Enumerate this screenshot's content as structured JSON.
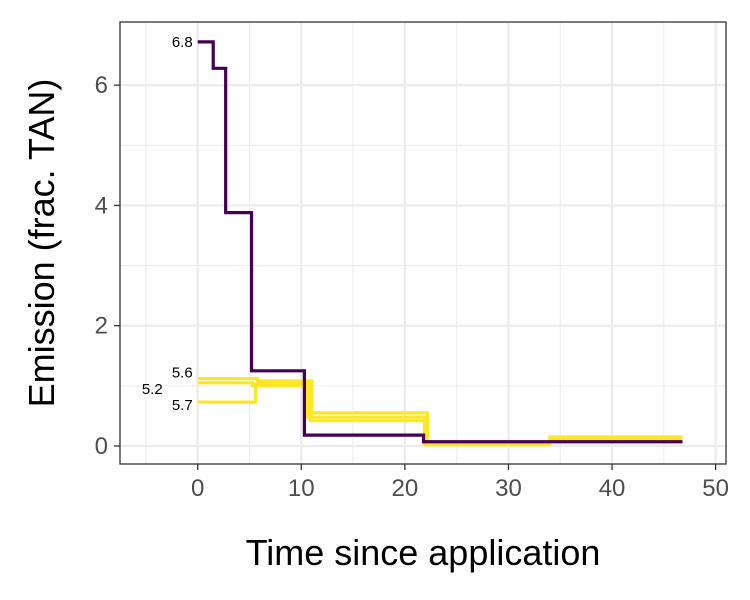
{
  "chart_data": {
    "type": "line",
    "title": "",
    "xlabel": "Time since application",
    "ylabel": "Emission (frac. TAN)",
    "xlim": [
      -7.5,
      51
    ],
    "ylim": [
      -0.3,
      7.05
    ],
    "x_ticks": [
      0,
      10,
      20,
      30,
      40,
      50
    ],
    "y_ticks": [
      0,
      2,
      4,
      6
    ],
    "x_minor_ticks": [
      -5,
      5,
      15,
      25,
      35,
      45
    ],
    "y_minor_ticks": [
      1,
      3,
      5
    ],
    "grid": true,
    "legend": "none",
    "step": "pre",
    "series": [
      {
        "label": "6.8",
        "color": "#440154",
        "x": [
          0,
          1.5,
          2.7,
          5.2,
          10.3,
          21.8,
          46.8
        ],
        "y": [
          6.72,
          6.28,
          3.88,
          1.25,
          0.18,
          0.07,
          0.07
        ]
      },
      {
        "label": "5.6",
        "color": "#FDE725",
        "x": [
          0,
          5.8,
          11.0,
          22.2,
          34.0,
          46.8
        ],
        "y": [
          1.12,
          1.08,
          0.55,
          0.05,
          0.15,
          0.15
        ]
      },
      {
        "label": "5.2",
        "color": "#FDE725",
        "x": [
          0,
          5.3,
          10.6,
          21.9,
          34.0,
          46.8
        ],
        "y": [
          1.05,
          1.0,
          0.48,
          0.03,
          0.12,
          0.12
        ]
      },
      {
        "label": "5.7",
        "color": "#FDE725",
        "x": [
          0,
          5.6,
          10.9,
          22.0,
          34.0,
          46.8
        ],
        "y": [
          0.73,
          1.03,
          0.42,
          0.02,
          0.1,
          0.1
        ]
      }
    ]
  }
}
